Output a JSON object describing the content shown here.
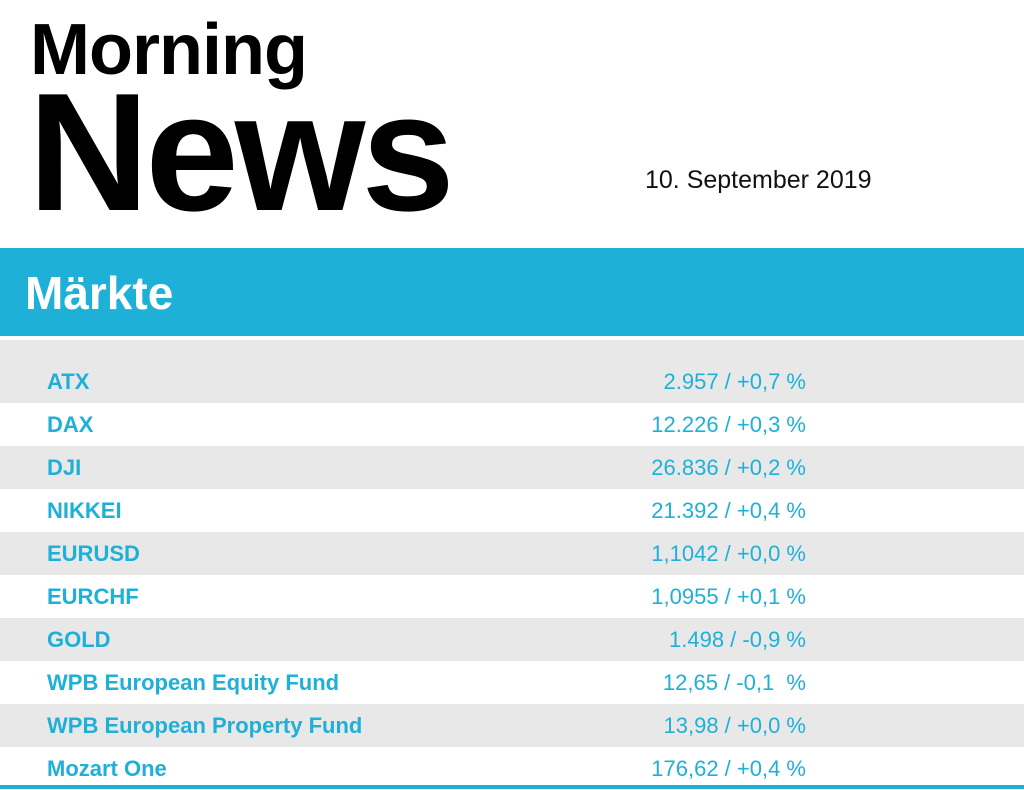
{
  "header": {
    "title_line1": "Morning",
    "title_line2": "News",
    "date": "10. September 2019"
  },
  "section": {
    "title": "Märkte"
  },
  "markets": [
    {
      "name": "ATX",
      "value": "2.957 / +0,7 %"
    },
    {
      "name": "DAX",
      "value": "12.226 / +0,3 %"
    },
    {
      "name": "DJI",
      "value": "26.836 / +0,2 %"
    },
    {
      "name": "NIKKEI",
      "value": "21.392 / +0,4 %"
    },
    {
      "name": "EURUSD",
      "value": "1,1042 / +0,0 %"
    },
    {
      "name": "EURCHF",
      "value": "1,0955 / +0,1 %"
    },
    {
      "name": "GOLD",
      "value": "1.498 / -0,9 %"
    },
    {
      "name": "WPB European Equity Fund",
      "value": "12,65 / -0,1  %"
    },
    {
      "name": "WPB European Property Fund",
      "value": "13,98 / +0,0 %"
    },
    {
      "name": "Mozart One",
      "value": "176,62 / +0,4 %"
    }
  ]
}
